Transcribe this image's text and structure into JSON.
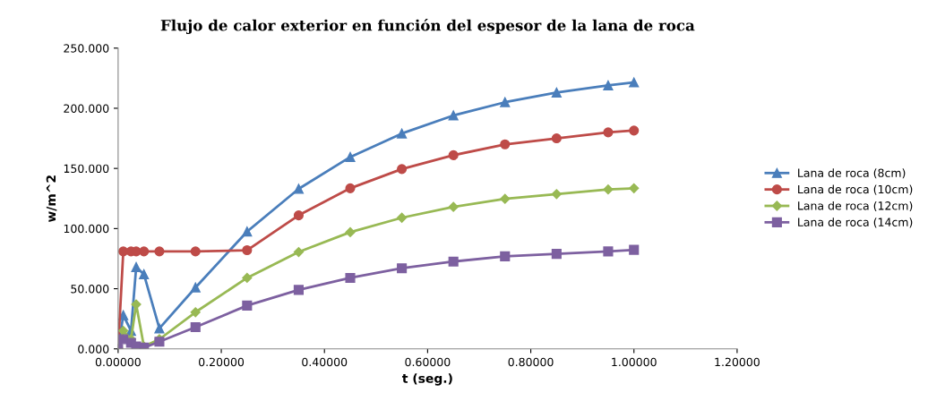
{
  "chart_data": {
    "type": "line",
    "title": "Flujo de calor exterior en función del espesor de la lana de roca",
    "xlabel": "t (seg.)",
    "ylabel": "w/m^2",
    "x": [
      0,
      0.01,
      0.025,
      0.035,
      0.05,
      0.08,
      0.15,
      0.25,
      0.35,
      0.45,
      0.55,
      0.65,
      0.75,
      0.85,
      0.95,
      1.0
    ],
    "series": [
      {
        "name": "Lana de roca (8cm)",
        "color": "#4a7ebb",
        "marker": "triangle",
        "values": [
          0,
          28,
          15,
          68,
          62,
          17,
          51,
          97.5,
          133,
          159.5,
          179,
          194,
          205,
          213,
          219,
          221.5
        ]
      },
      {
        "name": "Lana de roca (10cm)",
        "color": "#be4b48",
        "marker": "circle",
        "values": [
          0,
          81,
          81,
          81,
          81,
          81,
          81,
          82,
          111,
          133.5,
          149.5,
          161,
          170,
          175,
          180,
          181.5
        ]
      },
      {
        "name": "Lana de roca (12cm)",
        "color": "#98b954",
        "marker": "diamond",
        "values": [
          0,
          15,
          8,
          37,
          2,
          8,
          30.5,
          59,
          80.5,
          97,
          109,
          118,
          124.7,
          128.7,
          132.5,
          133.5
        ]
      },
      {
        "name": "Lana de roca (14cm)",
        "color": "#7d60a0",
        "marker": "square",
        "values": [
          0,
          8,
          5,
          2,
          1,
          6,
          18,
          36,
          49,
          59,
          67,
          72.6,
          76.9,
          79,
          81,
          82.3
        ]
      }
    ],
    "xlim": [
      0,
      1.2
    ],
    "xticks": [
      {
        "value": 0,
        "label": "0.00000"
      },
      {
        "value": 0.2,
        "label": "0.20000"
      },
      {
        "value": 0.4,
        "label": "0.40000"
      },
      {
        "value": 0.6,
        "label": "0.60000"
      },
      {
        "value": 0.8,
        "label": "0.80000"
      },
      {
        "value": 1.0,
        "label": "1.00000"
      },
      {
        "value": 1.2,
        "label": "1.20000"
      }
    ],
    "ylim": [
      0,
      250
    ],
    "yticks": [
      {
        "value": 0,
        "label": "0.000"
      },
      {
        "value": 50,
        "label": "50.000"
      },
      {
        "value": 100,
        "label": "100.000"
      },
      {
        "value": 150,
        "label": "150.000"
      },
      {
        "value": 200,
        "label": "200.000"
      },
      {
        "value": 250,
        "label": "250.000"
      }
    ],
    "grid": false,
    "legend": "right",
    "line_style": "solid"
  }
}
